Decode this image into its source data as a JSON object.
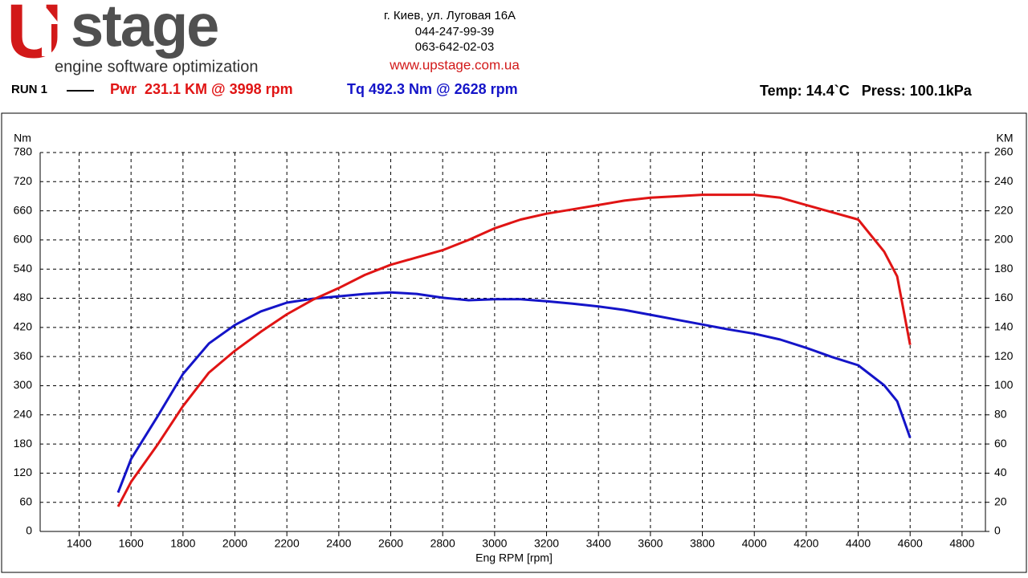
{
  "header": {
    "logo_mark": "U",
    "logo_text": "stage",
    "tagline": "engine software optimization",
    "address": "г. Киев, ул. Луговая 16А",
    "phone_1": "044-247-99-39",
    "phone_2": "063-642-02-03",
    "website": "www.upstage.com.ua"
  },
  "run": {
    "label": "RUN 1",
    "power": "Pwr  231.1 KM @ 3998 rpm",
    "torque": "Tq 492.3 Nm @ 2628 rpm",
    "conditions": "Temp: 14.4`C   Press: 100.1kPa"
  },
  "chart_data": {
    "type": "line",
    "x_label": "Eng RPM [rpm]",
    "y_label": "Nm",
    "y2_label": "KM",
    "grid": true,
    "xlim": [
      1250,
      4890
    ],
    "xticks": [
      1400,
      1600,
      1800,
      2000,
      2200,
      2400,
      2600,
      2800,
      3000,
      3200,
      3400,
      3600,
      3800,
      4000,
      4200,
      4400,
      4600,
      4800
    ],
    "ylim": [
      0,
      780
    ],
    "yticks": [
      0,
      60,
      120,
      180,
      240,
      300,
      360,
      420,
      480,
      540,
      600,
      660,
      720,
      780
    ],
    "y2lim": [
      0,
      260
    ],
    "y2ticks": [
      0,
      20,
      40,
      60,
      80,
      100,
      120,
      140,
      160,
      180,
      200,
      220,
      240,
      260
    ],
    "x": [
      1550,
      1600,
      1700,
      1800,
      1900,
      2000,
      2100,
      2200,
      2300,
      2400,
      2500,
      2600,
      2700,
      2800,
      2900,
      3000,
      3100,
      3200,
      3300,
      3400,
      3500,
      3600,
      3700,
      3800,
      3900,
      4000,
      4100,
      4200,
      4300,
      4400,
      4500,
      4550,
      4600
    ],
    "series": [
      {
        "name": "Tq",
        "color": "#1414c8",
        "axis": "y",
        "values": [
          80,
          149,
          235,
          324,
          387,
          425,
          453,
          471,
          479,
          484,
          489,
          492,
          489,
          481,
          476,
          478,
          478,
          474,
          469,
          463,
          456,
          446,
          436,
          426,
          416,
          407,
          395,
          378,
          359,
          342,
          301,
          268,
          193
        ]
      },
      {
        "name": "Pwr",
        "color": "#e01414",
        "axis": "y2",
        "values": [
          17,
          34,
          59,
          86,
          109,
          124,
          137,
          149,
          159,
          167,
          176,
          183,
          188,
          193,
          200,
          208,
          214,
          218,
          221,
          224,
          227,
          229,
          230,
          231,
          231,
          231,
          229,
          224,
          219,
          214,
          192,
          175,
          128
        ]
      }
    ]
  }
}
